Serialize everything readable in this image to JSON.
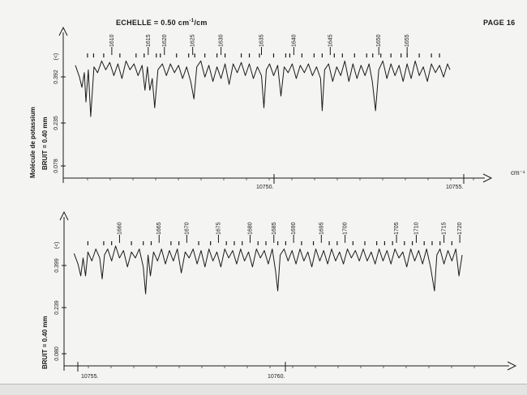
{
  "header": {
    "scale_label": "ECHELLE = 0.50 cm",
    "scale_exponent": "-1",
    "scale_unit": "/cm",
    "page_label": "PAGE 16"
  },
  "side_labels": {
    "molecule": "Molécule de potassium",
    "noise_top": "BRUIT = 0.40 mm",
    "noise_bottom": "BRUIT = 0.40 mm"
  },
  "chart_data": [
    {
      "type": "line",
      "title": "",
      "xlabel": "cm⁻¹",
      "ylabel": "(<)",
      "xlim": [
        10745.2,
        10755.0
      ],
      "ylim": [
        0.0,
        0.47
      ],
      "x_ticks": [
        "10750.",
        "10755."
      ],
      "y_ticks": [
        "0.392",
        "0.235",
        "0.078"
      ],
      "line_labels": [
        "1610",
        "1615",
        "1620",
        "1625",
        "1630",
        "1635",
        "1640",
        "1645",
        "1650",
        "1655"
      ],
      "line_label_x": [
        10746.3,
        10747.2,
        10747.6,
        10748.3,
        10749.0,
        10750.0,
        10750.8,
        10751.7,
        10752.9,
        10753.6
      ],
      "marker_x": [
        10745.7,
        10745.85,
        10746.1,
        10746.5,
        10746.9,
        10747.1,
        10747.4,
        10747.5,
        10747.9,
        10748.2,
        10748.35,
        10748.6,
        10748.9,
        10749.1,
        10749.5,
        10749.7,
        10749.95,
        10750.3,
        10750.6,
        10750.7,
        10751.0,
        10751.3,
        10751.5,
        10751.8,
        10752.0,
        10752.3,
        10752.6,
        10752.75,
        10752.95,
        10753.2,
        10753.45,
        10753.6,
        10753.9,
        10754.2,
        10754.4
      ],
      "series": [
        {
          "values": [
            [
              10745.4,
              0.385
            ],
            [
              10745.5,
              0.345
            ],
            [
              10745.56,
              0.31
            ],
            [
              10745.62,
              0.36
            ],
            [
              10745.66,
              0.26
            ],
            [
              10745.72,
              0.37
            ],
            [
              10745.78,
              0.21
            ],
            [
              10745.86,
              0.38
            ],
            [
              10745.95,
              0.36
            ],
            [
              10746.05,
              0.4
            ],
            [
              10746.15,
              0.37
            ],
            [
              10746.25,
              0.395
            ],
            [
              10746.35,
              0.35
            ],
            [
              10746.45,
              0.39
            ],
            [
              10746.55,
              0.34
            ],
            [
              10746.65,
              0.4
            ],
            [
              10746.75,
              0.37
            ],
            [
              10746.85,
              0.39
            ],
            [
              10746.95,
              0.35
            ],
            [
              10747.05,
              0.385
            ],
            [
              10747.12,
              0.3
            ],
            [
              10747.18,
              0.38
            ],
            [
              10747.24,
              0.3
            ],
            [
              10747.3,
              0.34
            ],
            [
              10747.36,
              0.24
            ],
            [
              10747.44,
              0.37
            ],
            [
              10747.55,
              0.39
            ],
            [
              10747.65,
              0.35
            ],
            [
              10747.75,
              0.39
            ],
            [
              10747.85,
              0.36
            ],
            [
              10747.95,
              0.385
            ],
            [
              10748.05,
              0.34
            ],
            [
              10748.15,
              0.38
            ],
            [
              10748.25,
              0.33
            ],
            [
              10748.33,
              0.27
            ],
            [
              10748.4,
              0.38
            ],
            [
              10748.5,
              0.4
            ],
            [
              10748.6,
              0.345
            ],
            [
              10748.7,
              0.385
            ],
            [
              10748.8,
              0.33
            ],
            [
              10748.9,
              0.38
            ],
            [
              10749.0,
              0.34
            ],
            [
              10749.1,
              0.39
            ],
            [
              10749.2,
              0.32
            ],
            [
              10749.3,
              0.39
            ],
            [
              10749.4,
              0.36
            ],
            [
              10749.5,
              0.395
            ],
            [
              10749.6,
              0.35
            ],
            [
              10749.7,
              0.39
            ],
            [
              10749.8,
              0.34
            ],
            [
              10749.9,
              0.38
            ],
            [
              10750.0,
              0.35
            ],
            [
              10750.06,
              0.24
            ],
            [
              10750.12,
              0.37
            ],
            [
              10750.2,
              0.39
            ],
            [
              10750.3,
              0.35
            ],
            [
              10750.4,
              0.385
            ],
            [
              10750.48,
              0.28
            ],
            [
              10750.56,
              0.38
            ],
            [
              10750.66,
              0.36
            ],
            [
              10750.76,
              0.39
            ],
            [
              10750.86,
              0.34
            ],
            [
              10750.96,
              0.385
            ],
            [
              10751.06,
              0.36
            ],
            [
              10751.16,
              0.39
            ],
            [
              10751.26,
              0.35
            ],
            [
              10751.36,
              0.38
            ],
            [
              10751.46,
              0.34
            ],
            [
              10751.5,
              0.23
            ],
            [
              10751.56,
              0.37
            ],
            [
              10751.66,
              0.39
            ],
            [
              10751.76,
              0.33
            ],
            [
              10751.86,
              0.38
            ],
            [
              10751.96,
              0.35
            ],
            [
              10752.06,
              0.4
            ],
            [
              10752.16,
              0.33
            ],
            [
              10752.26,
              0.39
            ],
            [
              10752.36,
              0.34
            ],
            [
              10752.46,
              0.385
            ],
            [
              10752.56,
              0.35
            ],
            [
              10752.66,
              0.39
            ],
            [
              10752.74,
              0.33
            ],
            [
              10752.82,
              0.23
            ],
            [
              10752.9,
              0.37
            ],
            [
              10753.0,
              0.4
            ],
            [
              10753.1,
              0.34
            ],
            [
              10753.2,
              0.39
            ],
            [
              10753.3,
              0.35
            ],
            [
              10753.4,
              0.385
            ],
            [
              10753.5,
              0.33
            ],
            [
              10753.6,
              0.39
            ],
            [
              10753.7,
              0.34
            ],
            [
              10753.8,
              0.4
            ],
            [
              10753.9,
              0.35
            ],
            [
              10754.0,
              0.38
            ],
            [
              10754.1,
              0.33
            ],
            [
              10754.2,
              0.39
            ],
            [
              10754.3,
              0.36
            ],
            [
              10754.4,
              0.385
            ],
            [
              10754.5,
              0.345
            ],
            [
              10754.6,
              0.39
            ],
            [
              10754.66,
              0.37
            ]
          ]
        }
      ]
    },
    {
      "type": "line",
      "title": "",
      "xlabel": "",
      "ylabel": "(<)",
      "xlim": [
        10754.6,
        10764.6
      ],
      "ylim": [
        0.0,
        0.47
      ],
      "x_ticks": [
        "10755.",
        "10760."
      ],
      "y_ticks": [
        "0.399",
        "0.239",
        "0.080"
      ],
      "line_labels": [
        "1660",
        "1665",
        "1670",
        "1675",
        "1680",
        "1685",
        "1690",
        "1695",
        "1700",
        "1705",
        "1710",
        "1715",
        "1720"
      ],
      "line_label_x": [
        10755.9,
        10756.9,
        10757.6,
        10758.4,
        10759.2,
        10759.8,
        10760.3,
        10761.0,
        10761.6,
        10762.9,
        10763.4,
        10764.1,
        10764.5
      ],
      "marker_x": [
        10755.1,
        10755.5,
        10755.7,
        10756.2,
        10756.5,
        10756.7,
        10757.2,
        10757.4,
        10757.9,
        10758.2,
        10758.6,
        10758.8,
        10759.0,
        10759.4,
        10759.6,
        10759.9,
        10760.1,
        10760.5,
        10760.8,
        10761.2,
        10761.4,
        10761.8,
        10762.1,
        10762.4,
        10762.6,
        10762.8,
        10763.1,
        10763.3,
        10763.6,
        10763.8,
        10764.0,
        10764.3
      ],
      "series": [
        {
          "values": [
            [
              10754.75,
              0.375
            ],
            [
              10754.85,
              0.34
            ],
            [
              10754.92,
              0.3
            ],
            [
              10754.98,
              0.36
            ],
            [
              10755.04,
              0.3
            ],
            [
              10755.1,
              0.38
            ],
            [
              10755.2,
              0.35
            ],
            [
              10755.3,
              0.39
            ],
            [
              10755.4,
              0.36
            ],
            [
              10755.46,
              0.29
            ],
            [
              10755.52,
              0.37
            ],
            [
              10755.6,
              0.39
            ],
            [
              10755.7,
              0.35
            ],
            [
              10755.8,
              0.4
            ],
            [
              10755.9,
              0.36
            ],
            [
              10756.0,
              0.385
            ],
            [
              10756.1,
              0.33
            ],
            [
              10756.2,
              0.38
            ],
            [
              10756.3,
              0.36
            ],
            [
              10756.4,
              0.39
            ],
            [
              10756.5,
              0.33
            ],
            [
              10756.56,
              0.24
            ],
            [
              10756.62,
              0.37
            ],
            [
              10756.68,
              0.3
            ],
            [
              10756.76,
              0.38
            ],
            [
              10756.86,
              0.35
            ],
            [
              10756.96,
              0.39
            ],
            [
              10757.06,
              0.34
            ],
            [
              10757.16,
              0.385
            ],
            [
              10757.26,
              0.35
            ],
            [
              10757.36,
              0.39
            ],
            [
              10757.46,
              0.31
            ],
            [
              10757.56,
              0.38
            ],
            [
              10757.66,
              0.36
            ],
            [
              10757.76,
              0.39
            ],
            [
              10757.86,
              0.34
            ],
            [
              10757.96,
              0.385
            ],
            [
              10758.06,
              0.33
            ],
            [
              10758.16,
              0.39
            ],
            [
              10758.26,
              0.35
            ],
            [
              10758.36,
              0.38
            ],
            [
              10758.46,
              0.33
            ],
            [
              10758.56,
              0.39
            ],
            [
              10758.66,
              0.36
            ],
            [
              10758.76,
              0.385
            ],
            [
              10758.86,
              0.34
            ],
            [
              10758.96,
              0.39
            ],
            [
              10759.06,
              0.35
            ],
            [
              10759.16,
              0.38
            ],
            [
              10759.26,
              0.33
            ],
            [
              10759.36,
              0.39
            ],
            [
              10759.46,
              0.36
            ],
            [
              10759.56,
              0.385
            ],
            [
              10759.66,
              0.34
            ],
            [
              10759.76,
              0.39
            ],
            [
              10759.84,
              0.32
            ],
            [
              10759.9,
              0.25
            ],
            [
              10759.96,
              0.37
            ],
            [
              10760.06,
              0.39
            ],
            [
              10760.16,
              0.35
            ],
            [
              10760.26,
              0.385
            ],
            [
              10760.36,
              0.34
            ],
            [
              10760.46,
              0.39
            ],
            [
              10760.56,
              0.35
            ],
            [
              10760.66,
              0.38
            ],
            [
              10760.76,
              0.33
            ],
            [
              10760.86,
              0.39
            ],
            [
              10760.96,
              0.35
            ],
            [
              10761.06,
              0.385
            ],
            [
              10761.16,
              0.34
            ],
            [
              10761.26,
              0.39
            ],
            [
              10761.36,
              0.35
            ],
            [
              10761.46,
              0.38
            ],
            [
              10761.56,
              0.34
            ],
            [
              10761.66,
              0.39
            ],
            [
              10761.76,
              0.36
            ],
            [
              10761.86,
              0.385
            ],
            [
              10761.96,
              0.35
            ],
            [
              10762.06,
              0.39
            ],
            [
              10762.16,
              0.35
            ],
            [
              10762.26,
              0.38
            ],
            [
              10762.36,
              0.34
            ],
            [
              10762.46,
              0.39
            ],
            [
              10762.56,
              0.35
            ],
            [
              10762.66,
              0.385
            ],
            [
              10762.76,
              0.34
            ],
            [
              10762.86,
              0.39
            ],
            [
              10762.96,
              0.36
            ],
            [
              10763.06,
              0.38
            ],
            [
              10763.16,
              0.33
            ],
            [
              10763.26,
              0.39
            ],
            [
              10763.36,
              0.35
            ],
            [
              10763.46,
              0.385
            ],
            [
              10763.56,
              0.34
            ],
            [
              10763.66,
              0.39
            ],
            [
              10763.76,
              0.33
            ],
            [
              10763.86,
              0.25
            ],
            [
              10763.92,
              0.37
            ],
            [
              10764.0,
              0.39
            ],
            [
              10764.1,
              0.34
            ],
            [
              10764.2,
              0.385
            ],
            [
              10764.3,
              0.35
            ],
            [
              10764.4,
              0.39
            ],
            [
              10764.48,
              0.3
            ],
            [
              10764.56,
              0.37
            ]
          ]
        }
      ]
    }
  ]
}
